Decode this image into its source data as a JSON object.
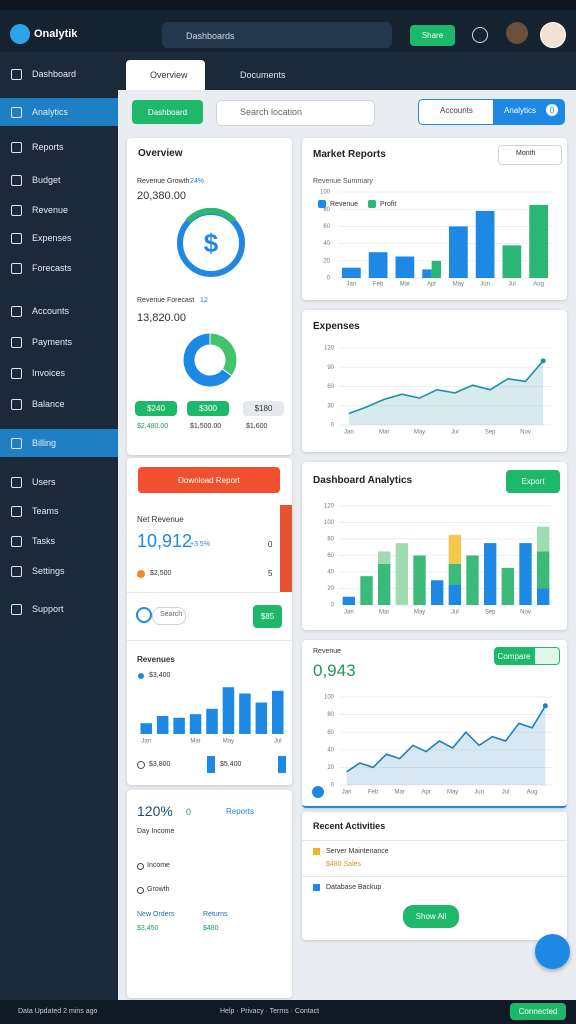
{
  "topbar": {
    "logo": "Onalytik",
    "search": "Dashboards",
    "button": "Share"
  },
  "sidebar": {
    "items": [
      "Dashboard",
      "Analytics",
      "Reports",
      "Budget",
      "Revenue",
      "Expenses",
      "Forecasts",
      "Accounts",
      "Payments",
      "Invoices",
      "Balance",
      "Billing",
      "Users",
      "Teams",
      "Tasks",
      "Settings",
      "Support"
    ]
  },
  "tabs": [
    "Overview",
    "Documents"
  ],
  "toolbar": {
    "button": "Dashboard",
    "search": "Search location",
    "toggle": [
      "Accounts",
      "Analytics"
    ],
    "badge": "0"
  },
  "overview_card": {
    "title": "Overview",
    "growth_label": "Revenue Growth",
    "growth_badge": "24%",
    "growth_value": "20,380.00",
    "icon": "$",
    "forecast_label": "Revenue Forecast",
    "forecast_badge": "12",
    "forecast_value": "13,820.00",
    "pills": [
      "$240",
      "$300",
      "$180"
    ],
    "totals": [
      "$2,480.00",
      "$1,500.00",
      "$1,600"
    ]
  },
  "net_card": {
    "button": "Download Report",
    "label": "Net Revenue",
    "value": "10,912",
    "change": "+3.5%",
    "count": "0",
    "row_value": "$2,500",
    "row_count": "5",
    "search": "Search",
    "action": "$85",
    "legend": "$3,400",
    "left_total": "$3,800",
    "right_total": "$5,400"
  },
  "reports_card": {
    "value": "120%",
    "delta": "0",
    "link": "Reports",
    "sub": "Day Income",
    "options": [
      "Income",
      "Growth"
    ],
    "stats": [
      {
        "label": "New Orders",
        "value": "$3,450"
      },
      {
        "label": "Returns",
        "value": "$480"
      }
    ]
  },
  "market_card": {
    "dropdown": "Month",
    "subtitle": "Revenue Summary"
  },
  "analytics_card": {
    "button": "Export"
  },
  "revenue_card": {
    "value": "0,943",
    "button": "Compare"
  },
  "activity_card": {
    "title": "Recent Activities",
    "items": [
      "Server Maintenance",
      "Database Backup"
    ],
    "note": "$480 Sales",
    "button": "Show All"
  },
  "status": {
    "left": "Data Updated 2 mins ago",
    "center": "Help · Privacy · Terms · Contact",
    "right": "Connected"
  },
  "chart_data": [
    {
      "type": "bar",
      "title": "Market Reports",
      "categories": [
        "Jan",
        "Feb",
        "Mar",
        "Apr",
        "May",
        "Jun",
        "Jul",
        "Aug"
      ],
      "series": [
        {
          "name": "Revenue",
          "color": "#1e88e5",
          "values": [
            12,
            30,
            25,
            10,
            60,
            78,
            null,
            null
          ]
        },
        {
          "name": "Profit",
          "color": "#2bb673",
          "values": [
            null,
            null,
            null,
            20,
            null,
            null,
            38,
            85
          ]
        }
      ],
      "ylim": [
        0,
        100
      ],
      "yticks": [
        0,
        20,
        40,
        60,
        80,
        100
      ],
      "grid": true
    },
    {
      "type": "line",
      "title": "Expenses",
      "categories": [
        "Jan",
        null,
        "Mar",
        null,
        "May",
        null,
        "Jul",
        null,
        "Sep",
        null,
        "Nov",
        null
      ],
      "values": [
        18,
        28,
        40,
        48,
        42,
        55,
        50,
        62,
        55,
        72,
        68,
        100
      ],
      "color": "#1f8fa8",
      "area": true,
      "ylim": [
        0,
        120
      ],
      "yticks": [
        0,
        30,
        60,
        90,
        120
      ],
      "grid": true
    },
    {
      "type": "bar",
      "title": "Dashboard Analytics",
      "stacked": true,
      "categories": [
        "Jan",
        null,
        "Mar",
        null,
        "May",
        null,
        "Jul",
        null,
        "Sep",
        null,
        "Nov",
        null
      ],
      "series": [
        {
          "color": "#1e88e5",
          "values": [
            10,
            0,
            0,
            0,
            0,
            30,
            25,
            0,
            75,
            0,
            75,
            20
          ]
        },
        {
          "color": "#3cba7a",
          "values": [
            0,
            35,
            50,
            0,
            60,
            0,
            25,
            60,
            0,
            45,
            0,
            45
          ]
        },
        {
          "color": "#9fdcb0",
          "values": [
            0,
            0,
            15,
            75,
            0,
            0,
            0,
            0,
            0,
            0,
            0,
            30
          ]
        },
        {
          "color": "#f2c94c",
          "values": [
            0,
            0,
            0,
            0,
            0,
            0,
            35,
            0,
            0,
            0,
            0,
            0
          ]
        }
      ],
      "ylim": [
        0,
        120
      ],
      "yticks": [
        0,
        20,
        40,
        60,
        80,
        100,
        120
      ],
      "grid": true
    },
    {
      "type": "line",
      "title": "Revenue",
      "categories": [
        "Jan",
        null,
        "Feb",
        null,
        "Mar",
        null,
        "Apr",
        null,
        "May",
        null,
        "Jun",
        null,
        "Jul",
        null,
        "Aug",
        null
      ],
      "values": [
        15,
        25,
        20,
        35,
        30,
        45,
        38,
        50,
        42,
        60,
        45,
        55,
        50,
        70,
        65,
        90
      ],
      "color": "#1f7fc4",
      "area": true,
      "ylim": [
        0,
        100
      ],
      "yticks": [
        0,
        20,
        40,
        60,
        80,
        100
      ],
      "grid": true
    },
    {
      "type": "bar",
      "title": "Revenues",
      "categories": [
        "Jan",
        null,
        null,
        "Mar",
        null,
        "May",
        null,
        null,
        "Jul"
      ],
      "values": [
        12,
        20,
        18,
        22,
        28,
        52,
        45,
        35,
        48
      ],
      "color": "#1e88e5",
      "ylim": [
        0,
        60
      ]
    },
    {
      "type": "pie",
      "values": [
        35,
        65
      ],
      "colors": [
        "#43c46b",
        "#1e88e5"
      ],
      "hole": true
    }
  ]
}
